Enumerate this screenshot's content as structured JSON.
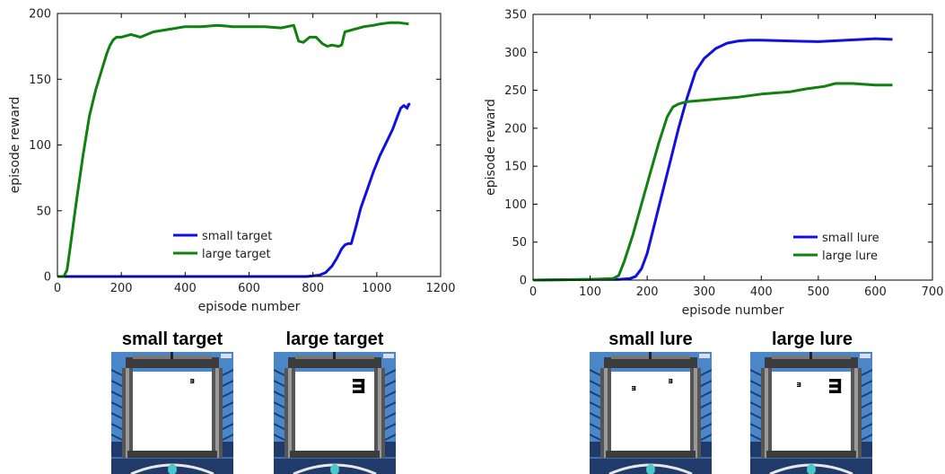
{
  "chart_data": [
    {
      "type": "line",
      "xlabel": "episode number",
      "ylabel": "episode reward",
      "xlim": [
        0,
        1200
      ],
      "ylim": [
        0,
        200
      ],
      "xticks": [
        0,
        200,
        400,
        600,
        800,
        1000,
        1200
      ],
      "yticks": [
        0,
        50,
        100,
        150,
        200
      ],
      "grid": false,
      "legend_position": "bottom-right",
      "series": [
        {
          "name": "small target",
          "color": "#1010e0",
          "x": [
            0,
            200,
            400,
            600,
            780,
            820,
            840,
            860,
            875,
            890,
            900,
            910,
            920,
            935,
            950,
            970,
            990,
            1010,
            1030,
            1050,
            1065,
            1075,
            1085,
            1095,
            1100,
            1105
          ],
          "y": [
            0,
            0,
            0,
            0,
            0,
            1,
            3,
            8,
            14,
            21,
            24,
            25,
            25,
            38,
            52,
            66,
            80,
            92,
            102,
            112,
            122,
            128,
            130,
            128,
            131,
            131
          ]
        },
        {
          "name": "large target",
          "color": "#108010",
          "x": [
            0,
            20,
            30,
            40,
            60,
            80,
            100,
            120,
            140,
            155,
            165,
            175,
            185,
            200,
            230,
            260,
            300,
            350,
            400,
            450,
            500,
            550,
            600,
            650,
            700,
            740,
            755,
            770,
            790,
            810,
            830,
            845,
            860,
            880,
            890,
            900,
            930,
            960,
            990,
            1010,
            1040,
            1070,
            1100
          ],
          "y": [
            0,
            0,
            5,
            22,
            58,
            92,
            122,
            142,
            158,
            170,
            176,
            180,
            182,
            182,
            184,
            182,
            186,
            188,
            190,
            190,
            191,
            190,
            190,
            190,
            189,
            191,
            179,
            178,
            182,
            182,
            177,
            175,
            176,
            175,
            176,
            186,
            188,
            190,
            191,
            192,
            193,
            193,
            192
          ]
        }
      ]
    },
    {
      "type": "line",
      "xlabel": "episode number",
      "ylabel": "episode reward",
      "xlim": [
        0,
        700
      ],
      "ylim": [
        0,
        350
      ],
      "xticks": [
        0,
        100,
        200,
        300,
        400,
        500,
        600,
        700
      ],
      "yticks": [
        0,
        50,
        100,
        150,
        200,
        250,
        300,
        350
      ],
      "grid": false,
      "legend_position": "bottom-right",
      "series": [
        {
          "name": "small lure",
          "color": "#1010e0",
          "x": [
            0,
            100,
            150,
            170,
            180,
            190,
            200,
            210,
            225,
            240,
            255,
            270,
            285,
            300,
            320,
            340,
            360,
            380,
            400,
            450,
            500,
            550,
            600,
            630
          ],
          "y": [
            0,
            1,
            1,
            2,
            5,
            15,
            35,
            65,
            110,
            155,
            200,
            240,
            275,
            292,
            305,
            312,
            315,
            316,
            316,
            315,
            314,
            316,
            318,
            317
          ]
        },
        {
          "name": "large lure",
          "color": "#108010",
          "x": [
            0,
            100,
            140,
            150,
            160,
            175,
            190,
            205,
            220,
            235,
            245,
            255,
            270,
            300,
            330,
            360,
            400,
            450,
            480,
            510,
            530,
            560,
            600,
            630
          ],
          "y": [
            0,
            1,
            2,
            6,
            25,
            60,
            100,
            140,
            180,
            215,
            228,
            232,
            235,
            237,
            239,
            241,
            245,
            248,
            252,
            255,
            259,
            259,
            257,
            257
          ]
        }
      ]
    }
  ],
  "panels": [
    {
      "title": "small target",
      "marker": "small",
      "lure": false
    },
    {
      "title": "large target",
      "marker": "large",
      "lure": false
    },
    {
      "title": "small lure",
      "marker": "small",
      "lure": true
    },
    {
      "title": "large lure",
      "marker": "large",
      "lure": true
    }
  ]
}
